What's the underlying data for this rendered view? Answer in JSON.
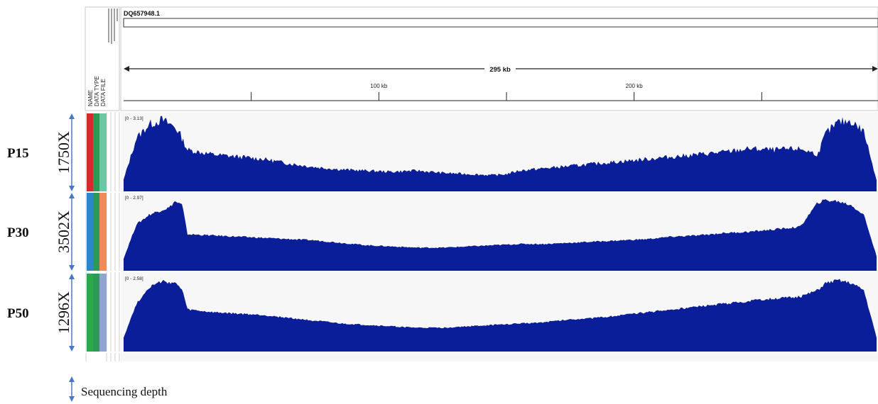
{
  "header": {
    "locus": "DQ657948.1",
    "span_label": "295 kb",
    "attribute_labels": [
      "NAME",
      "DATA TYPE",
      "DATA FILE"
    ]
  },
  "colors": {
    "coverage": "#0b1e99",
    "name_column": [
      "#d42a2a",
      "#2e86c7",
      "#2aa84a"
    ],
    "type_column": [
      "#2a9a56",
      "#2a9a56",
      "#2a9a56"
    ],
    "file_column": [
      "#6cc7a4",
      "#f08a5a",
      "#8fa4cf"
    ],
    "arrow": "#4a78c8"
  },
  "legend": {
    "label": "Sequencing depth"
  },
  "chart_data": {
    "type": "area",
    "genome_length_kb": 295,
    "x_axis": {
      "unit": "kb",
      "range": [
        0,
        295
      ],
      "tick_labels": [
        {
          "value": 100,
          "label": "100 kb"
        },
        {
          "value": 200,
          "label": "200 kb"
        }
      ],
      "minor_ticks": [
        50,
        150,
        250
      ]
    },
    "series": [
      {
        "name": "P15",
        "depth_label": "1750X",
        "range_label": "[0 - 3.13]",
        "ymax": 3.13,
        "x": [
          0,
          5,
          10,
          15,
          20,
          22,
          25,
          35,
          45,
          55,
          65,
          75,
          85,
          95,
          105,
          115,
          125,
          135,
          145,
          150,
          155,
          165,
          175,
          185,
          195,
          205,
          215,
          225,
          235,
          245,
          255,
          265,
          272,
          275,
          280,
          285,
          290,
          295
        ],
        "y": [
          0.5,
          2.3,
          2.9,
          3.1,
          2.8,
          2.5,
          1.8,
          1.6,
          1.5,
          1.4,
          1.2,
          1.05,
          0.95,
          0.9,
          0.85,
          0.9,
          0.8,
          0.75,
          0.7,
          0.75,
          0.9,
          1.0,
          1.1,
          1.2,
          1.3,
          1.4,
          1.5,
          1.6,
          1.7,
          1.85,
          1.8,
          1.85,
          1.6,
          2.5,
          3.0,
          3.05,
          2.6,
          0.5
        ]
      },
      {
        "name": "P30",
        "depth_label": "3502X",
        "range_label": "[0 - 2.97]",
        "ymax": 2.97,
        "x": [
          0,
          5,
          10,
          15,
          18,
          20,
          23,
          25,
          35,
          45,
          55,
          65,
          75,
          85,
          95,
          105,
          115,
          125,
          135,
          145,
          155,
          165,
          175,
          185,
          195,
          205,
          215,
          225,
          235,
          245,
          255,
          265,
          272,
          275,
          280,
          285,
          290,
          295
        ],
        "y": [
          0.5,
          1.9,
          2.3,
          2.5,
          2.6,
          2.85,
          2.7,
          1.5,
          1.45,
          1.4,
          1.35,
          1.3,
          1.25,
          1.15,
          1.05,
          1.0,
          0.95,
          0.95,
          1.0,
          1.05,
          1.1,
          1.1,
          1.15,
          1.2,
          1.25,
          1.3,
          1.4,
          1.45,
          1.55,
          1.6,
          1.7,
          1.8,
          2.8,
          2.9,
          2.85,
          2.7,
          2.3,
          0.6
        ]
      },
      {
        "name": "P50",
        "depth_label": "1296X",
        "range_label": "[0 - 2.58]",
        "ymax": 2.58,
        "x": [
          0,
          5,
          10,
          15,
          20,
          23,
          25,
          35,
          45,
          55,
          65,
          75,
          85,
          95,
          105,
          115,
          125,
          135,
          145,
          155,
          165,
          175,
          185,
          195,
          205,
          215,
          225,
          235,
          245,
          255,
          265,
          272,
          275,
          280,
          285,
          290,
          295
        ],
        "y": [
          0.5,
          1.7,
          2.3,
          2.5,
          2.45,
          2.2,
          1.5,
          1.4,
          1.35,
          1.3,
          1.2,
          1.1,
          1.0,
          0.95,
          0.9,
          0.85,
          0.85,
          0.9,
          0.95,
          1.0,
          1.05,
          1.15,
          1.2,
          1.3,
          1.4,
          1.5,
          1.6,
          1.7,
          1.8,
          1.9,
          1.95,
          2.2,
          2.45,
          2.55,
          2.45,
          2.2,
          0.5
        ]
      }
    ]
  }
}
